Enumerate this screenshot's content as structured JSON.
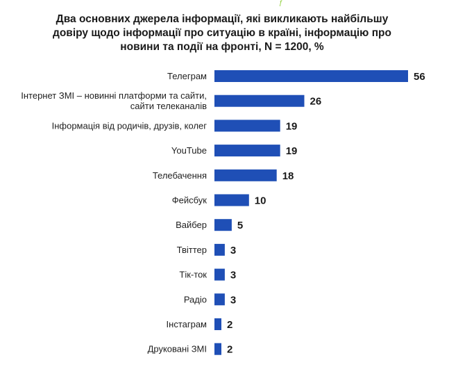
{
  "accent_glyph": "ƒ",
  "colors": {
    "bar": "#1f4fb6",
    "accent": "#8fcf3a",
    "text": "#1a1a1a"
  },
  "chart_data": {
    "type": "bar",
    "orientation": "horizontal",
    "title_lines": [
      "Два основних джерела інформації, які викликають найбільшу",
      "довіру щодо інформації про ситуацію в країні, інформацію про",
      "новини та події на фронті, N = 1200, %"
    ],
    "categories": [
      [
        "Телеграм"
      ],
      [
        "Інтернет ЗМІ – новинні платформи та сайти,",
        "сайти телеканалів"
      ],
      [
        "Інформація від родичів, друзів, колег"
      ],
      [
        "YouTube"
      ],
      [
        "Телебачення"
      ],
      [
        "Фейсбук"
      ],
      [
        "Вайбер"
      ],
      [
        "Твіттер"
      ],
      [
        "Тік-ток"
      ],
      [
        "Радіо"
      ],
      [
        "Інстаграм"
      ],
      [
        "Друковані ЗМІ"
      ]
    ],
    "values": [
      56,
      26,
      19,
      19,
      18,
      10,
      5,
      3,
      3,
      3,
      2,
      2
    ],
    "xlabel": "",
    "ylabel": "",
    "xlim": [
      0,
      56
    ],
    "grid": false,
    "legend": "none"
  }
}
